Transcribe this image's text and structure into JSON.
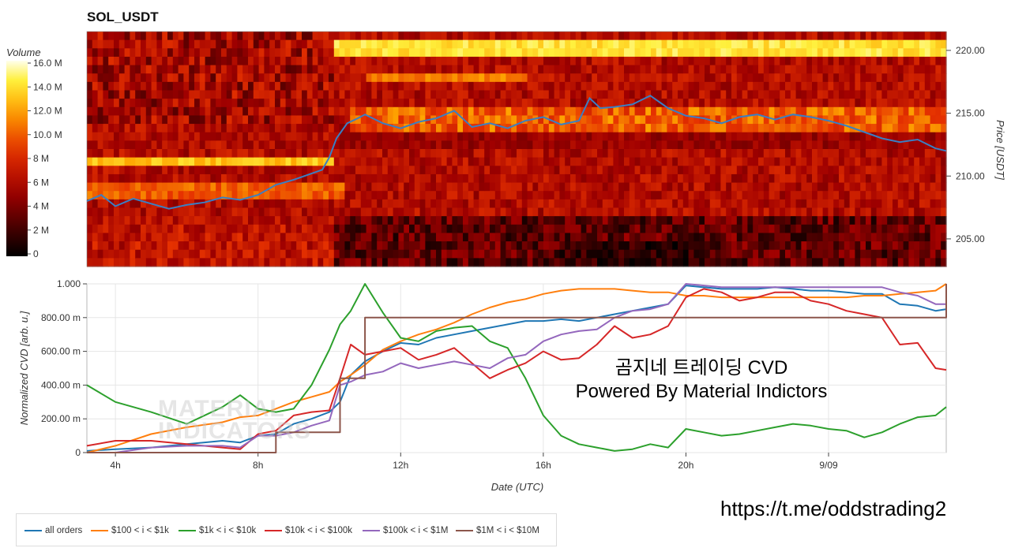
{
  "title": "SOL_USDT",
  "colorbar": {
    "title": "Volume",
    "ticks": [
      "16.0 M",
      "14.0 M",
      "12.0 M",
      "10.0 M",
      "8 M",
      "6 M",
      "4 M",
      "2 M",
      "0"
    ]
  },
  "heatmap_axis": {
    "ylabel": "Price [USDT]",
    "ticks": [
      "220.00",
      "215.00",
      "210.00",
      "205.00"
    ]
  },
  "cvd_axis": {
    "ylabel": "Normalized CVD [arb. u.]",
    "yticks": [
      "1.000",
      "800.00 m",
      "600.00 m",
      "400.00 m",
      "200.00 m",
      "0"
    ],
    "xlabel": "Date (UTC)",
    "xticks": [
      "4h",
      "8h",
      "12h",
      "16h",
      "20h",
      "9/09"
    ]
  },
  "overlay_text": {
    "line1": "곰지네 트레이딩 CVD",
    "line2": "Powered By Material Indictors"
  },
  "link": "https://t.me/oddstrading2",
  "watermark": {
    "line1": "MATERIAL",
    "line2": "INDICATORS"
  },
  "legend": [
    {
      "label": "all orders",
      "color": "#1f77b4"
    },
    {
      "label": "$100 < i < $1k",
      "color": "#ff7f0e"
    },
    {
      "label": "$1k < i < $10k",
      "color": "#2ca02c"
    },
    {
      "label": "$10k < i < $100k",
      "color": "#d62728"
    },
    {
      "label": "$100k < i < $1M",
      "color": "#9467bd"
    },
    {
      "label": "$1M < i < $10M",
      "color": "#8c564b"
    }
  ],
  "chart_data": [
    {
      "type": "heatmap",
      "title": "SOL_USDT",
      "ylabel": "Price [USDT]",
      "ylim": [
        202.8,
        221.5
      ],
      "colorbar_range_M": [
        0,
        16
      ],
      "price_series": {
        "name": "Price",
        "color": "#3a7fc4",
        "x_hours": [
          3.2,
          3.6,
          4.0,
          4.5,
          5.0,
          5.5,
          6.0,
          6.5,
          7.0,
          7.5,
          8.0,
          8.5,
          9.0,
          9.5,
          9.8,
          10.0,
          10.2,
          10.5,
          10.8,
          11.0,
          11.5,
          12.0,
          12.5,
          13.0,
          13.5,
          14.0,
          14.5,
          15.0,
          15.5,
          16.0,
          16.5,
          17.0,
          17.3,
          17.6,
          18.0,
          18.5,
          19.0,
          19.5,
          20.0,
          20.5,
          21.0,
          21.5,
          22.0,
          22.5,
          23.0,
          23.5,
          24.0,
          24.5,
          25.0,
          25.5,
          26.0,
          26.5,
          27.0,
          27.3
        ],
        "y": [
          208.0,
          208.5,
          207.6,
          208.2,
          207.8,
          207.4,
          207.7,
          207.9,
          208.3,
          208.1,
          208.5,
          209.3,
          209.7,
          210.2,
          210.5,
          211.5,
          213.0,
          214.2,
          214.6,
          214.9,
          214.2,
          213.8,
          214.3,
          214.6,
          215.2,
          213.9,
          214.2,
          213.8,
          214.4,
          214.7,
          214.1,
          214.4,
          216.2,
          215.4,
          215.5,
          215.7,
          216.4,
          215.4,
          214.8,
          214.6,
          214.2,
          214.7,
          214.9,
          214.5,
          214.9,
          214.7,
          214.4,
          214.0,
          213.5,
          213.0,
          212.7,
          212.9,
          212.2,
          212.0
        ]
      },
      "high_volume_bands": [
        {
          "price_range": [
            219.5,
            220.5
          ],
          "time_range_hours": [
            10.2,
            27.3
          ],
          "level_M": 14
        },
        {
          "price_range": [
            217.5,
            218.2
          ],
          "time_range_hours": [
            11.0,
            15.5
          ],
          "level_M": 11
        },
        {
          "price_range": [
            210.5,
            211.5
          ],
          "time_range_hours": [
            3.2,
            10.2
          ],
          "level_M": 13
        }
      ]
    },
    {
      "type": "line",
      "xlabel": "Date (UTC)",
      "ylabel": "Normalized CVD [arb. u.]",
      "x_tick_labels": [
        "4h",
        "8h",
        "12h",
        "16h",
        "20h",
        "9/09"
      ],
      "xlim_hours": [
        3.2,
        27.3
      ],
      "ylim": [
        0,
        1
      ],
      "x_hours": [
        3.2,
        4,
        5,
        6,
        7,
        7.5,
        8,
        8.5,
        9,
        9.5,
        10,
        10.3,
        10.6,
        11,
        11.5,
        12,
        12.5,
        13,
        13.5,
        14,
        14.5,
        15,
        15.5,
        16,
        16.5,
        17,
        17.5,
        18,
        18.5,
        19,
        19.5,
        20,
        20.5,
        21,
        21.5,
        22,
        22.5,
        23,
        23.5,
        24,
        24.5,
        25,
        25.5,
        26,
        26.5,
        27,
        27.3
      ],
      "series": [
        {
          "name": "all orders",
          "color": "#1f77b4",
          "values": [
            0.01,
            0.02,
            0.03,
            0.05,
            0.07,
            0.06,
            0.1,
            0.11,
            0.17,
            0.2,
            0.24,
            0.3,
            0.46,
            0.54,
            0.6,
            0.65,
            0.64,
            0.68,
            0.7,
            0.72,
            0.74,
            0.76,
            0.78,
            0.78,
            0.79,
            0.78,
            0.8,
            0.82,
            0.84,
            0.86,
            0.88,
            0.99,
            0.98,
            0.97,
            0.97,
            0.97,
            0.98,
            0.97,
            0.96,
            0.96,
            0.95,
            0.94,
            0.94,
            0.88,
            0.87,
            0.84,
            0.85
          ]
        },
        {
          "name": "$100 < i < $1k",
          "color": "#ff7f0e",
          "values": [
            0.0,
            0.04,
            0.11,
            0.15,
            0.18,
            0.21,
            0.22,
            0.26,
            0.3,
            0.33,
            0.36,
            0.42,
            0.46,
            0.52,
            0.61,
            0.66,
            0.7,
            0.73,
            0.77,
            0.82,
            0.86,
            0.89,
            0.91,
            0.94,
            0.96,
            0.97,
            0.97,
            0.97,
            0.96,
            0.95,
            0.95,
            0.93,
            0.93,
            0.92,
            0.92,
            0.92,
            0.92,
            0.92,
            0.92,
            0.92,
            0.92,
            0.93,
            0.93,
            0.94,
            0.95,
            0.96,
            1.0
          ]
        },
        {
          "name": "$1k < i < $10k",
          "color": "#2ca02c",
          "values": [
            0.4,
            0.3,
            0.24,
            0.17,
            0.27,
            0.34,
            0.26,
            0.24,
            0.26,
            0.4,
            0.61,
            0.76,
            0.84,
            1.0,
            0.83,
            0.68,
            0.66,
            0.72,
            0.74,
            0.75,
            0.66,
            0.62,
            0.44,
            0.22,
            0.1,
            0.05,
            0.03,
            0.01,
            0.02,
            0.05,
            0.03,
            0.14,
            0.12,
            0.1,
            0.11,
            0.13,
            0.15,
            0.17,
            0.16,
            0.14,
            0.13,
            0.09,
            0.12,
            0.17,
            0.21,
            0.22,
            0.27
          ]
        },
        {
          "name": "$10k < i < $100k",
          "color": "#d62728",
          "values": [
            0.04,
            0.07,
            0.07,
            0.05,
            0.03,
            0.02,
            0.11,
            0.13,
            0.22,
            0.24,
            0.25,
            0.44,
            0.64,
            0.58,
            0.6,
            0.62,
            0.55,
            0.58,
            0.62,
            0.53,
            0.44,
            0.49,
            0.53,
            0.6,
            0.55,
            0.56,
            0.64,
            0.75,
            0.68,
            0.7,
            0.75,
            0.92,
            0.97,
            0.95,
            0.9,
            0.92,
            0.95,
            0.95,
            0.9,
            0.88,
            0.84,
            0.82,
            0.8,
            0.64,
            0.65,
            0.5,
            0.49
          ]
        },
        {
          "name": "$100k < i < $1M",
          "color": "#9467bd",
          "values": [
            0.0,
            0.0,
            0.03,
            0.04,
            0.04,
            0.03,
            0.1,
            0.1,
            0.12,
            0.16,
            0.19,
            0.4,
            0.42,
            0.46,
            0.48,
            0.53,
            0.5,
            0.52,
            0.54,
            0.52,
            0.5,
            0.56,
            0.58,
            0.66,
            0.7,
            0.72,
            0.73,
            0.8,
            0.84,
            0.85,
            0.88,
            1.0,
            0.99,
            0.98,
            0.98,
            0.98,
            0.98,
            0.98,
            0.98,
            0.98,
            0.98,
            0.98,
            0.98,
            0.95,
            0.93,
            0.88,
            0.88
          ]
        },
        {
          "name": "$1M < i < $10M",
          "color": "#8c564b",
          "values": [
            0.0,
            0.0,
            0.0,
            0.0,
            0.0,
            0.0,
            0.0,
            0.12,
            0.12,
            0.12,
            0.12,
            0.44,
            0.44,
            0.8,
            0.8,
            0.8,
            0.8,
            0.8,
            0.8,
            0.8,
            0.8,
            0.8,
            0.8,
            0.8,
            0.8,
            0.8,
            0.8,
            0.8,
            0.8,
            0.8,
            0.8,
            0.8,
            0.8,
            0.8,
            0.8,
            0.8,
            0.8,
            0.8,
            0.8,
            0.8,
            0.8,
            0.8,
            0.8,
            0.8,
            0.8,
            0.8,
            1.0
          ]
        }
      ]
    }
  ]
}
